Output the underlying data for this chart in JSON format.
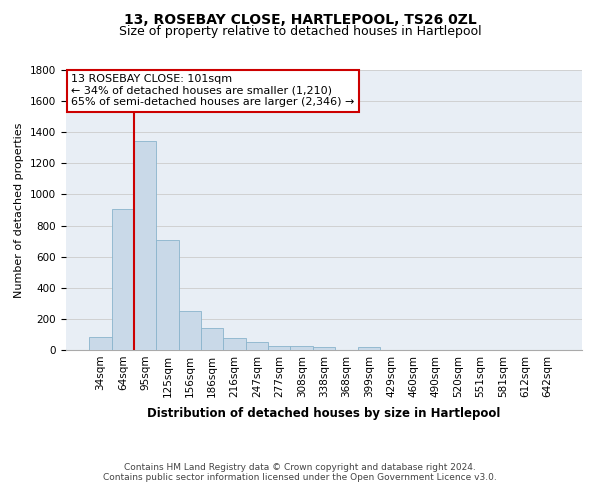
{
  "title": "13, ROSEBAY CLOSE, HARTLEPOOL, TS26 0ZL",
  "subtitle": "Size of property relative to detached houses in Hartlepool",
  "xlabel": "Distribution of detached houses by size in Hartlepool",
  "ylabel": "Number of detached properties",
  "categories": [
    "34sqm",
    "64sqm",
    "95sqm",
    "125sqm",
    "156sqm",
    "186sqm",
    "216sqm",
    "247sqm",
    "277sqm",
    "308sqm",
    "338sqm",
    "368sqm",
    "399sqm",
    "429sqm",
    "460sqm",
    "490sqm",
    "520sqm",
    "551sqm",
    "581sqm",
    "612sqm",
    "642sqm"
  ],
  "values": [
    85,
    905,
    1345,
    710,
    248,
    140,
    78,
    50,
    28,
    25,
    18,
    0,
    20,
    0,
    0,
    0,
    0,
    0,
    0,
    0,
    0
  ],
  "bar_color": "#c9d9e8",
  "bar_edge_color": "#8ab4cc",
  "vline_color": "#cc0000",
  "vline_x": 1.5,
  "annotation_line1": "13 ROSEBAY CLOSE: 101sqm",
  "annotation_line2": "← 34% of detached houses are smaller (1,210)",
  "annotation_line3": "65% of semi-detached houses are larger (2,346) →",
  "annotation_box_color": "#ffffff",
  "annotation_box_edge_color": "#cc0000",
  "ylim": [
    0,
    1800
  ],
  "yticks": [
    0,
    200,
    400,
    600,
    800,
    1000,
    1200,
    1400,
    1600,
    1800
  ],
  "grid_color": "#cccccc",
  "bg_color": "#e8eef5",
  "footer_line1": "Contains HM Land Registry data © Crown copyright and database right 2024.",
  "footer_line2": "Contains public sector information licensed under the Open Government Licence v3.0.",
  "title_fontsize": 10,
  "subtitle_fontsize": 9,
  "xlabel_fontsize": 8.5,
  "ylabel_fontsize": 8,
  "tick_fontsize": 7.5,
  "annotation_fontsize": 8,
  "footer_fontsize": 6.5
}
